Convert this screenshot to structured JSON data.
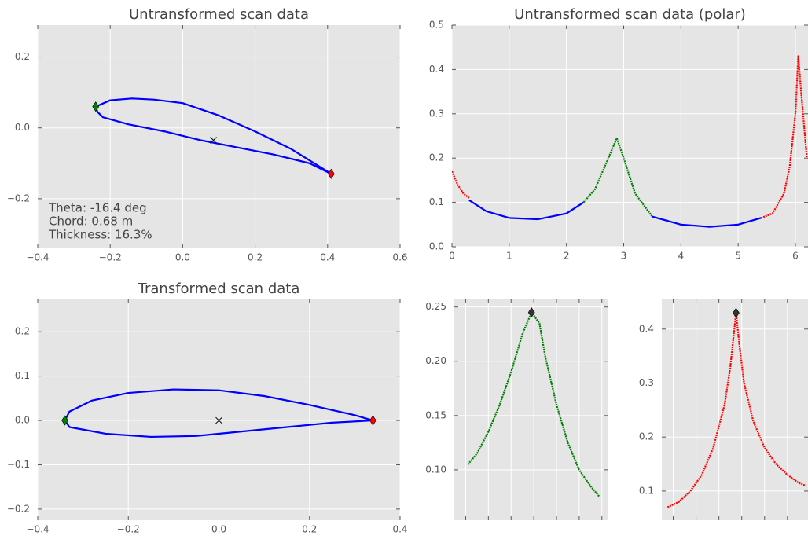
{
  "chart_data": [
    {
      "type": "line",
      "title": "Untransformed scan data",
      "xlim": [
        -0.4,
        0.6
      ],
      "ylim": [
        -0.34,
        0.29
      ],
      "xticks": [
        {
          "value": -0.4,
          "label": "−0.4"
        },
        {
          "value": -0.2,
          "label": "−0.2"
        },
        {
          "value": 0,
          "label": "0.0"
        },
        0.2,
        0.4,
        0.6
      ],
      "yticks": [
        {
          "value": -0.2,
          "label": "−0.2"
        },
        {
          "value": 0,
          "label": "0.0"
        },
        0.2
      ],
      "grid": true,
      "annotations": [
        "Theta: -16.4 deg",
        "Chord: 0.68 m",
        "Thickness: 16.3%"
      ],
      "series": [
        {
          "color": "#0000ff",
          "x": [
            0.41,
            0.3,
            0.2,
            0.1,
            0.0,
            -0.08,
            -0.14,
            -0.2,
            -0.24,
            -0.235,
            -0.22,
            -0.15,
            -0.05,
            0.05,
            0.15,
            0.25,
            0.35,
            0.41
          ],
          "values": [
            -0.13,
            -0.06,
            -0.01,
            0.035,
            0.07,
            0.08,
            0.083,
            0.078,
            0.06,
            0.045,
            0.03,
            0.01,
            -0.01,
            -0.035,
            -0.055,
            -0.075,
            -0.1,
            -0.13
          ]
        },
        {
          "color": "#008000",
          "marker": "diamond",
          "x": [
            -0.24
          ],
          "values": [
            0.06
          ]
        },
        {
          "color": "#ff0000",
          "marker": "diamond",
          "x": [
            0.41
          ],
          "values": [
            -0.13
          ]
        },
        {
          "color": "#000000",
          "marker": "x",
          "x": [
            0.085
          ],
          "values": [
            -0.035
          ]
        }
      ]
    },
    {
      "type": "line",
      "title": "Untransformed scan data (polar)",
      "xlim": [
        0,
        6.22
      ],
      "ylim": [
        0,
        0.5
      ],
      "xticks": [
        0,
        1,
        2,
        3,
        4,
        5,
        6
      ],
      "yticks": [
        {
          "value": 0,
          "label": "0.0"
        },
        0.1,
        0.2,
        0.3,
        0.4,
        0.5
      ],
      "grid": true,
      "series": [
        {
          "color": "#ff0000",
          "x": [
            0,
            0.1,
            0.2,
            0.3,
            null,
            5.4,
            5.6,
            5.8,
            5.9,
            6.0,
            6.05,
            6.1,
            6.2
          ],
          "values": [
            0.17,
            0.14,
            0.12,
            0.11,
            null,
            0.065,
            0.075,
            0.12,
            0.18,
            0.3,
            0.43,
            0.35,
            0.2
          ]
        },
        {
          "color": "#0000ff",
          "x": [
            0.3,
            0.6,
            1,
            1.5,
            2,
            2.3,
            null,
            3.5,
            4,
            4.5,
            5,
            5.4
          ],
          "values": [
            0.105,
            0.08,
            0.065,
            0.062,
            0.075,
            0.1,
            null,
            0.068,
            0.05,
            0.045,
            0.05,
            0.065
          ]
        },
        {
          "color": "#008000",
          "x": [
            2.3,
            2.5,
            2.7,
            2.88,
            3.0,
            3.2,
            3.5
          ],
          "values": [
            0.1,
            0.13,
            0.19,
            0.245,
            0.2,
            0.12,
            0.068
          ]
        }
      ]
    },
    {
      "type": "line",
      "title": "Transformed scan data",
      "xlim": [
        -0.4,
        0.4
      ],
      "ylim": [
        -0.225,
        0.273
      ],
      "xticks": [
        {
          "value": -0.4,
          "label": "−0.4"
        },
        {
          "value": -0.2,
          "label": "−0.2"
        },
        {
          "value": 0,
          "label": "0.0"
        },
        0.2,
        0.4
      ],
      "yticks": [
        {
          "value": -0.2,
          "label": "−0.2"
        },
        {
          "value": -0.1,
          "label": "−0.1"
        },
        {
          "value": 0,
          "label": "0.0"
        },
        0.1,
        0.2
      ],
      "grid": true,
      "series": [
        {
          "color": "#0000ff",
          "x": [
            0.34,
            0.3,
            0.2,
            0.1,
            0.0,
            -0.1,
            -0.2,
            -0.28,
            -0.33,
            -0.34,
            -0.33,
            -0.25,
            -0.15,
            -0.05,
            0.05,
            0.15,
            0.25,
            0.34
          ],
          "values": [
            0,
            0.012,
            0.035,
            0.055,
            0.068,
            0.07,
            0.062,
            0.045,
            0.02,
            0,
            -0.015,
            -0.03,
            -0.037,
            -0.035,
            -0.025,
            -0.015,
            -0.005,
            0
          ]
        },
        {
          "color": "#008000",
          "marker": "diamond",
          "x": [
            -0.34
          ],
          "values": [
            0
          ]
        },
        {
          "color": "#ff0000",
          "marker": "diamond",
          "x": [
            0.34
          ],
          "values": [
            0
          ]
        },
        {
          "color": "#000000",
          "marker": "x",
          "x": [
            0
          ],
          "values": [
            0
          ]
        }
      ]
    },
    {
      "type": "line",
      "xlim": [
        2.2,
        3.55
      ],
      "ylim": [
        0.0536,
        0.257
      ],
      "xticks": [
        2.3,
        2.5,
        2.7,
        2.9,
        3.1,
        3.3,
        3.5
      ],
      "xtick_labels": false,
      "yticks": [
        {
          "value": 0.1,
          "label": "0.10"
        },
        0.15,
        {
          "value": 0.2,
          "label": "0.20"
        },
        0.25
      ],
      "grid": true,
      "series": [
        {
          "color": "#008000",
          "x": [
            2.32,
            2.4,
            2.5,
            2.6,
            2.7,
            2.8,
            2.88,
            2.95,
            3.0,
            3.1,
            3.2,
            3.3,
            3.4,
            3.48
          ],
          "values": [
            0.105,
            0.115,
            0.135,
            0.16,
            0.19,
            0.225,
            0.245,
            0.235,
            0.205,
            0.16,
            0.125,
            0.1,
            0.085,
            0.075
          ]
        },
        {
          "color": "#333333",
          "marker": "diamond",
          "x": [
            2.88
          ],
          "values": [
            0.245
          ]
        }
      ]
    },
    {
      "type": "line",
      "xlim": [
        5.4,
        6.68
      ],
      "ylim": [
        0.046,
        0.455
      ],
      "xticks": [
        5.5,
        5.7,
        5.9,
        6.1,
        6.3,
        6.5
      ],
      "xtick_labels": false,
      "yticks": [
        0.1,
        0.2,
        0.3,
        0.4
      ],
      "grid": true,
      "series": [
        {
          "color": "#ff0000",
          "x": [
            5.45,
            5.55,
            5.65,
            5.75,
            5.85,
            5.95,
            6.0,
            6.05,
            6.08,
            6.12,
            6.2,
            6.3,
            6.4,
            6.5,
            6.6,
            6.66
          ],
          "values": [
            0.07,
            0.08,
            0.1,
            0.13,
            0.18,
            0.26,
            0.33,
            0.43,
            0.37,
            0.3,
            0.23,
            0.18,
            0.15,
            0.13,
            0.115,
            0.11
          ]
        },
        {
          "color": "#333333",
          "marker": "diamond",
          "x": [
            6.05
          ],
          "values": [
            0.43
          ]
        }
      ]
    }
  ]
}
